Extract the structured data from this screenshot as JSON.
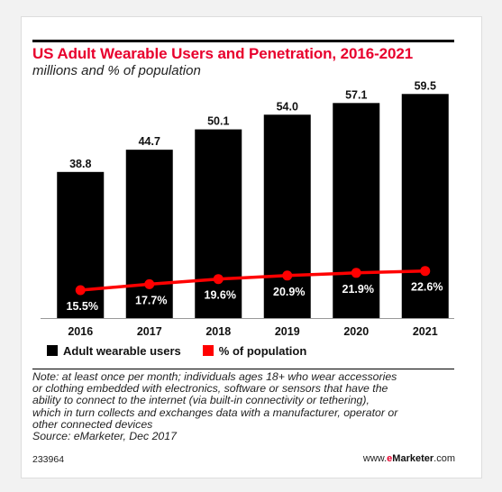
{
  "chart_data": {
    "type": "bar",
    "title": "US Adult Wearable Users and Penetration, 2016-2021",
    "subtitle": "millions and % of population",
    "categories": [
      "2016",
      "2017",
      "2018",
      "2019",
      "2020",
      "2021"
    ],
    "series": [
      {
        "name": "Adult wearable users",
        "type": "bar",
        "values": [
          38.8,
          44.7,
          50.1,
          54.0,
          57.1,
          59.5
        ],
        "labels": [
          "38.8",
          "44.7",
          "50.1",
          "54.0",
          "57.1",
          "59.5"
        ],
        "color": "#000000"
      },
      {
        "name": "% of population",
        "type": "line",
        "values": [
          15.5,
          17.7,
          19.6,
          20.9,
          21.9,
          22.6
        ],
        "labels": [
          "15.5%",
          "17.7%",
          "19.6%",
          "20.9%",
          "21.9%",
          "22.6%"
        ],
        "color": "#ff0000"
      }
    ],
    "ylim": [
      0,
      62
    ],
    "y2lim": [
      0,
      100
    ],
    "legend_placement": "bottom-left",
    "grid": false
  },
  "footer": {
    "note_lines": [
      "Note: at least once per month; individuals ages 18+ who wear accessories",
      "or clothing embedded with electronics, software or sensors that have the",
      "ability to connect to the internet (via built-in connectivity or tethering),",
      "which in turn collects and exchanges data with a manufacturer, operator or",
      "other connected devices",
      "Source: eMarketer, Dec 2017"
    ],
    "chart_id": "233964",
    "brand_prefix": "www.",
    "brand_e": "e",
    "brand_marketer": "Marketer",
    "brand_suffix": ".com"
  }
}
